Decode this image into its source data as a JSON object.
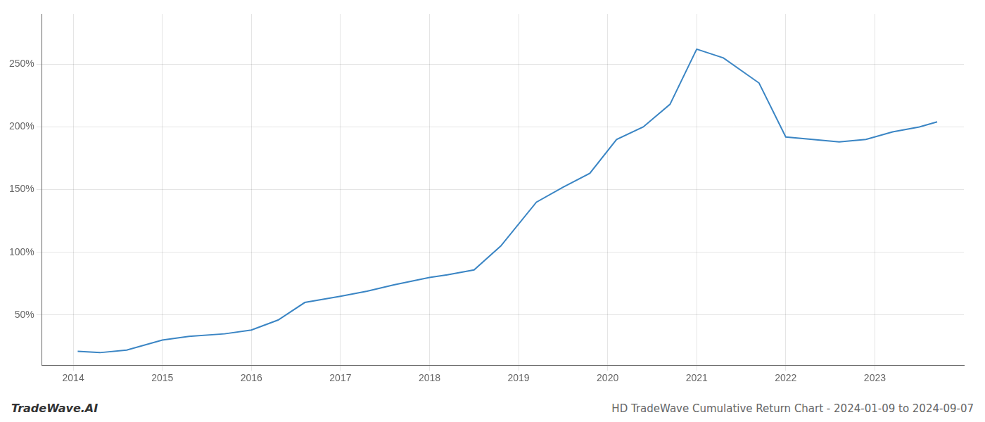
{
  "chart_data": {
    "type": "line",
    "title": "HD TradeWave Cumulative Return Chart - 2024-01-09 to 2024-09-07",
    "annotations": [
      {
        "text": "TradeWave.AI"
      }
    ],
    "x": [
      2014.05,
      2014.3,
      2014.6,
      2015.0,
      2015.3,
      2015.7,
      2016.0,
      2016.3,
      2016.6,
      2017.0,
      2017.3,
      2017.6,
      2018.0,
      2018.2,
      2018.5,
      2018.8,
      2019.2,
      2019.5,
      2019.8,
      2020.1,
      2020.4,
      2020.7,
      2021.0,
      2021.3,
      2021.7,
      2022.0,
      2022.3,
      2022.6,
      2022.9,
      2023.2,
      2023.5,
      2023.7
    ],
    "values": [
      21,
      20,
      22,
      30,
      33,
      35,
      38,
      46,
      60,
      65,
      69,
      74,
      80,
      82,
      86,
      105,
      140,
      152,
      163,
      190,
      200,
      218,
      262,
      255,
      235,
      192,
      190,
      188,
      190,
      196,
      200,
      204
    ],
    "color": "#3a85c4",
    "xlim": [
      2013.65,
      2024.0
    ],
    "xticks": [
      2014,
      2015,
      2016,
      2017,
      2018,
      2019,
      2020,
      2021,
      2022,
      2023
    ],
    "ylim": [
      10,
      290
    ],
    "yticks": [
      {
        "value": 50,
        "label": "50%"
      },
      {
        "value": 100,
        "label": "100%"
      },
      {
        "value": 150,
        "label": "150%"
      },
      {
        "value": 200,
        "label": "200%"
      },
      {
        "value": 250,
        "label": "250%"
      }
    ],
    "grid": true
  }
}
